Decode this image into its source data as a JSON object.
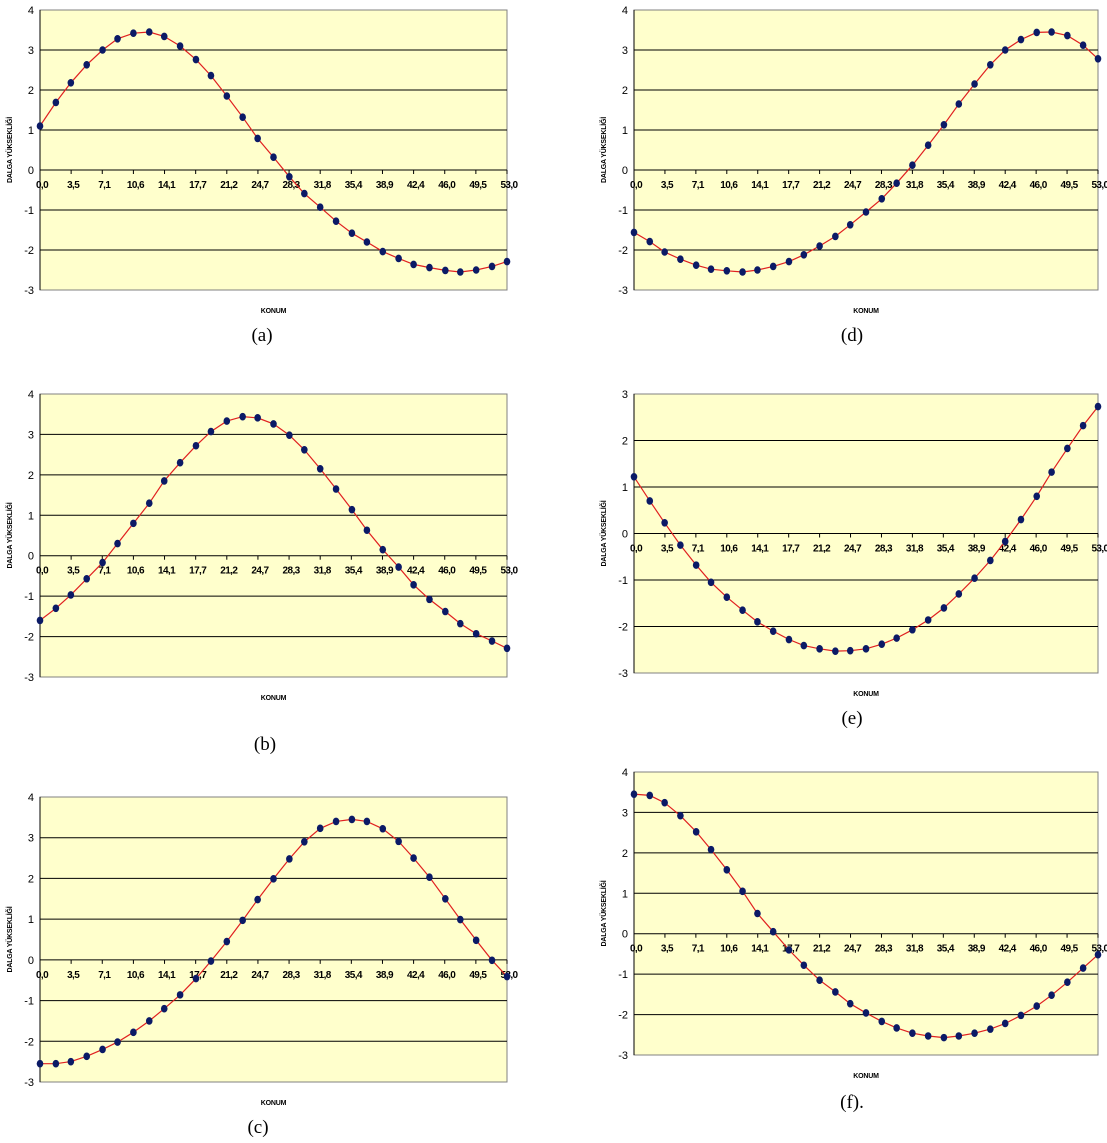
{
  "colors": {
    "plot_bg": "#ffffcc",
    "curve": "#e02020",
    "marker": "#0b1a66",
    "grid": "#000000"
  },
  "chart_data": [
    {
      "type": "line",
      "caption": "(a)",
      "xlabel": "KONUM",
      "ylabel": "DALGA YÜKSEKLİĞİ",
      "ylim": [
        -3,
        4
      ],
      "yticks": [
        4,
        3,
        2,
        1,
        0,
        -1,
        -2,
        -3
      ],
      "x_tick_labels": [
        "0,0",
        "3,5",
        "7,1",
        "10,6",
        "14,1",
        "17,7",
        "21,2",
        "24,7",
        "28,3",
        "31,8",
        "35,4",
        "38,9",
        "42,4",
        "46,0",
        "49,5",
        "53,0"
      ],
      "x": [
        0.0,
        1.8,
        3.5,
        5.3,
        7.1,
        8.8,
        10.6,
        12.4,
        14.1,
        15.9,
        17.7,
        19.4,
        21.2,
        23.0,
        24.7,
        26.5,
        28.3,
        30.0,
        31.8,
        33.6,
        35.4,
        37.1,
        38.9,
        40.7,
        42.4,
        44.2,
        46.0,
        47.7,
        49.5,
        51.3,
        53.0
      ],
      "series": [
        {
          "values": [
            1.1,
            1.69,
            2.18,
            2.63,
            3.0,
            3.28,
            3.42,
            3.45,
            3.34,
            3.1,
            2.76,
            2.36,
            1.85,
            1.32,
            0.79,
            0.32,
            -0.17,
            -0.59,
            -0.93,
            -1.28,
            -1.58,
            -1.8,
            -2.04,
            -2.21,
            -2.36,
            -2.44,
            -2.51,
            -2.55,
            -2.5,
            -2.41,
            -2.29
          ]
        }
      ],
      "grid": "horizontal"
    },
    {
      "type": "line",
      "caption": "(b)",
      "xlabel": "KONUM",
      "ylabel": "DALGA YÜKSEKLİĞİ",
      "ylim": [
        -3,
        4
      ],
      "yticks": [
        4,
        3,
        2,
        1,
        0,
        -1,
        -2,
        -3
      ],
      "x_tick_labels": [
        "0,0",
        "3,5",
        "7,1",
        "10,6",
        "14,1",
        "17,7",
        "21,2",
        "24,7",
        "28,3",
        "31,8",
        "35,4",
        "38,9",
        "42,4",
        "46,0",
        "49,5",
        "53,0"
      ],
      "x": [
        0.0,
        1.8,
        3.5,
        5.3,
        7.1,
        8.8,
        10.6,
        12.4,
        14.1,
        15.9,
        17.7,
        19.4,
        21.2,
        23.0,
        24.7,
        26.5,
        28.3,
        30.0,
        31.8,
        33.6,
        35.4,
        37.1,
        38.9,
        40.7,
        42.4,
        44.2,
        46.0,
        47.7,
        49.5,
        51.3,
        53.0
      ],
      "series": [
        {
          "values": [
            -1.6,
            -1.3,
            -0.97,
            -0.57,
            -0.17,
            0.3,
            0.8,
            1.3,
            1.85,
            2.3,
            2.72,
            3.07,
            3.33,
            3.44,
            3.41,
            3.26,
            2.98,
            2.62,
            2.15,
            1.65,
            1.14,
            0.63,
            0.15,
            -0.28,
            -0.72,
            -1.08,
            -1.38,
            -1.68,
            -1.93,
            -2.11,
            -2.29
          ]
        }
      ],
      "grid": "horizontal"
    },
    {
      "type": "line",
      "caption": "(c)",
      "xlabel": "KONUM",
      "ylabel": "DALGA YÜKSEKLİĞİ",
      "ylim": [
        -3,
        4
      ],
      "yticks": [
        4,
        3,
        2,
        1,
        0,
        -1,
        -2,
        -3
      ],
      "x_tick_labels": [
        "0,0",
        "3,5",
        "7,1",
        "10,6",
        "14,1",
        "17,7",
        "21,2",
        "24,7",
        "28,3",
        "31,8",
        "35,4",
        "38,9",
        "42,4",
        "46,0",
        "49,5",
        "53,0"
      ],
      "x": [
        0.0,
        1.8,
        3.5,
        5.3,
        7.1,
        8.8,
        10.6,
        12.4,
        14.1,
        15.9,
        17.7,
        19.4,
        21.2,
        23.0,
        24.7,
        26.5,
        28.3,
        30.0,
        31.8,
        33.6,
        35.4,
        37.1,
        38.9,
        40.7,
        42.4,
        44.2,
        46.0,
        47.7,
        49.5,
        51.3,
        53.0
      ],
      "series": [
        {
          "values": [
            -2.55,
            -2.55,
            -2.5,
            -2.37,
            -2.2,
            -2.02,
            -1.78,
            -1.5,
            -1.2,
            -0.86,
            -0.46,
            -0.03,
            0.45,
            0.97,
            1.48,
            1.99,
            2.48,
            2.9,
            3.23,
            3.4,
            3.45,
            3.4,
            3.22,
            2.91,
            2.5,
            2.03,
            1.5,
            0.99,
            0.48,
            -0.01,
            -0.41
          ]
        }
      ],
      "grid": "horizontal"
    },
    {
      "type": "line",
      "caption": "(d)",
      "xlabel": "KONUM",
      "ylabel": "DALGA YÜKSEKLİĞİ",
      "ylim": [
        -3,
        4
      ],
      "yticks": [
        4,
        3,
        2,
        1,
        0,
        -1,
        -2,
        -3
      ],
      "x_tick_labels": [
        "0,0",
        "3,5",
        "7,1",
        "10,6",
        "14,1",
        "17,7",
        "21,2",
        "24,7",
        "28,3",
        "31,8",
        "35,4",
        "38,9",
        "42,4",
        "46,0",
        "49,5",
        "53,0"
      ],
      "x": [
        0.0,
        1.8,
        3.5,
        5.3,
        7.1,
        8.8,
        10.6,
        12.4,
        14.1,
        15.9,
        17.7,
        19.4,
        21.2,
        23.0,
        24.7,
        26.5,
        28.3,
        30.0,
        31.8,
        33.6,
        35.4,
        37.1,
        38.9,
        40.7,
        42.4,
        44.2,
        46.0,
        47.7,
        49.5,
        51.3,
        53.0
      ],
      "series": [
        {
          "values": [
            -1.56,
            -1.79,
            -2.05,
            -2.23,
            -2.38,
            -2.48,
            -2.52,
            -2.55,
            -2.5,
            -2.41,
            -2.29,
            -2.12,
            -1.9,
            -1.66,
            -1.37,
            -1.05,
            -0.72,
            -0.33,
            0.12,
            0.62,
            1.13,
            1.65,
            2.15,
            2.63,
            3.0,
            3.26,
            3.44,
            3.45,
            3.36,
            3.12,
            2.78
          ]
        }
      ],
      "grid": "horizontal"
    },
    {
      "type": "line",
      "caption": "(e)",
      "xlabel": "KONUM",
      "ylabel": "DALGA YÜKSEKLİĞİ",
      "ylim": [
        -3,
        3
      ],
      "yticks": [
        3,
        2,
        1,
        0,
        -1,
        -2,
        -3
      ],
      "x_tick_labels": [
        "0,0",
        "3,5",
        "7,1",
        "10,6",
        "14,1",
        "17,7",
        "21,2",
        "24,7",
        "28,3",
        "31,8",
        "35,4",
        "38,9",
        "42,4",
        "46,0",
        "49,5",
        "53,0"
      ],
      "x": [
        0.0,
        1.8,
        3.5,
        5.3,
        7.1,
        8.8,
        10.6,
        12.4,
        14.1,
        15.9,
        17.7,
        19.4,
        21.2,
        23.0,
        24.7,
        26.5,
        28.3,
        30.0,
        31.8,
        33.6,
        35.4,
        37.1,
        38.9,
        40.7,
        42.4,
        44.2,
        46.0,
        47.7,
        49.5,
        51.3,
        53.0
      ],
      "series": [
        {
          "values": [
            1.22,
            0.7,
            0.23,
            -0.25,
            -0.68,
            -1.05,
            -1.37,
            -1.65,
            -1.9,
            -2.1,
            -2.28,
            -2.41,
            -2.48,
            -2.53,
            -2.52,
            -2.48,
            -2.38,
            -2.25,
            -2.07,
            -1.86,
            -1.6,
            -1.3,
            -0.96,
            -0.58,
            -0.17,
            0.3,
            0.8,
            1.32,
            1.83,
            2.32,
            2.73
          ]
        }
      ],
      "grid": "horizontal"
    },
    {
      "type": "line",
      "caption": "(f).",
      "xlabel": "KONUM",
      "ylabel": "DALGA YÜKSEKLİĞİ",
      "ylim": [
        -3,
        4
      ],
      "yticks": [
        4,
        3,
        2,
        1,
        0,
        -1,
        -2,
        -3
      ],
      "x_tick_labels": [
        "0,0",
        "3,5",
        "7,1",
        "10,6",
        "14,1",
        "17,7",
        "21,2",
        "24,7",
        "28,3",
        "31,8",
        "35,4",
        "38,9",
        "42,4",
        "46,0",
        "49,5",
        "53,0"
      ],
      "x": [
        0.0,
        1.8,
        3.5,
        5.3,
        7.1,
        8.8,
        10.6,
        12.4,
        14.1,
        15.9,
        17.7,
        19.4,
        21.2,
        23.0,
        24.7,
        26.5,
        28.3,
        30.0,
        31.8,
        33.6,
        35.4,
        37.1,
        38.9,
        40.7,
        42.4,
        44.2,
        46.0,
        47.7,
        49.5,
        51.3,
        53.0
      ],
      "series": [
        {
          "values": [
            3.45,
            3.42,
            3.24,
            2.92,
            2.52,
            2.08,
            1.58,
            1.05,
            0.5,
            0.05,
            -0.4,
            -0.78,
            -1.15,
            -1.44,
            -1.73,
            -1.96,
            -2.17,
            -2.33,
            -2.46,
            -2.53,
            -2.57,
            -2.53,
            -2.46,
            -2.36,
            -2.22,
            -2.02,
            -1.79,
            -1.52,
            -1.2,
            -0.85,
            -0.52
          ]
        }
      ],
      "grid": "horizontal"
    }
  ]
}
